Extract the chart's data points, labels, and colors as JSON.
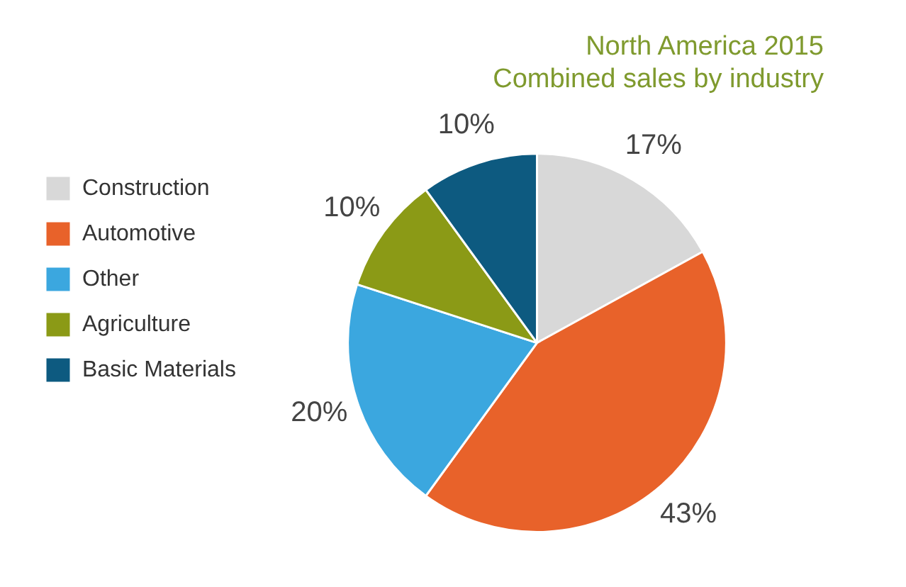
{
  "chart_data": {
    "type": "pie",
    "title": "North America 2015",
    "subtitle": "Combined sales by industry",
    "categories": [
      "Construction",
      "Automotive",
      "Other",
      "Agriculture",
      "Basic Materials"
    ],
    "values": [
      17,
      43,
      20,
      10,
      10
    ],
    "value_labels": [
      "17%",
      "43%",
      "20%",
      "10%",
      "10%"
    ],
    "colors": [
      "#d8d8d8",
      "#e8622a",
      "#3ba7df",
      "#8b9a16",
      "#0d5a80"
    ],
    "legend": "left"
  }
}
